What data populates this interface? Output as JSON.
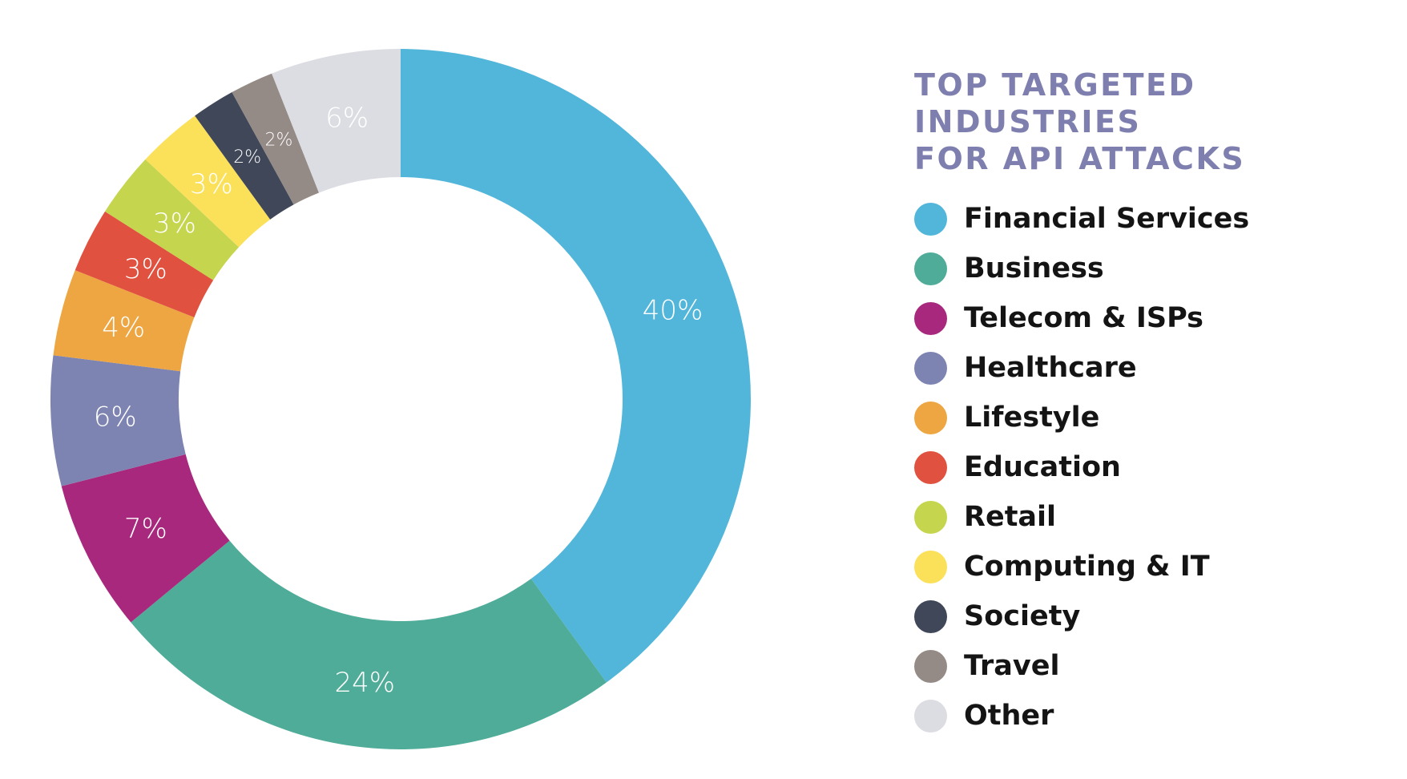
{
  "title_lines": [
    "TOP TARGETED INDUSTRIES",
    "FOR API ATTACKS"
  ],
  "chart_data": {
    "type": "pie",
    "variant": "donut",
    "title": "TOP TARGETED INDUSTRIES FOR API ATTACKS",
    "legend_placement": "right",
    "slices": [
      {
        "name": "Financial Services",
        "value": 40,
        "label": "40%",
        "color": "#52b6da"
      },
      {
        "name": "Business",
        "value": 24,
        "label": "24%",
        "color": "#4eac98"
      },
      {
        "name": "Telecom & ISPs",
        "value": 7,
        "label": "7%",
        "color": "#a8287d"
      },
      {
        "name": "Healthcare",
        "value": 6,
        "label": "6%",
        "color": "#7e84b2"
      },
      {
        "name": "Lifestyle",
        "value": 4,
        "label": "4%",
        "color": "#eda642"
      },
      {
        "name": "Education",
        "value": 3,
        "label": "3%",
        "color": "#e0513f"
      },
      {
        "name": "Retail",
        "value": 3,
        "label": "3%",
        "color": "#c5d54d"
      },
      {
        "name": "Computing & IT",
        "value": 3,
        "label": "3%",
        "color": "#fbe05a"
      },
      {
        "name": "Society",
        "value": 2,
        "label": "2%",
        "color": "#3f4759"
      },
      {
        "name": "Travel",
        "value": 2,
        "label": "2%",
        "color": "#948a86"
      },
      {
        "name": "Other",
        "value": 6,
        "label": "6%",
        "color": "#dcdde2"
      }
    ]
  }
}
